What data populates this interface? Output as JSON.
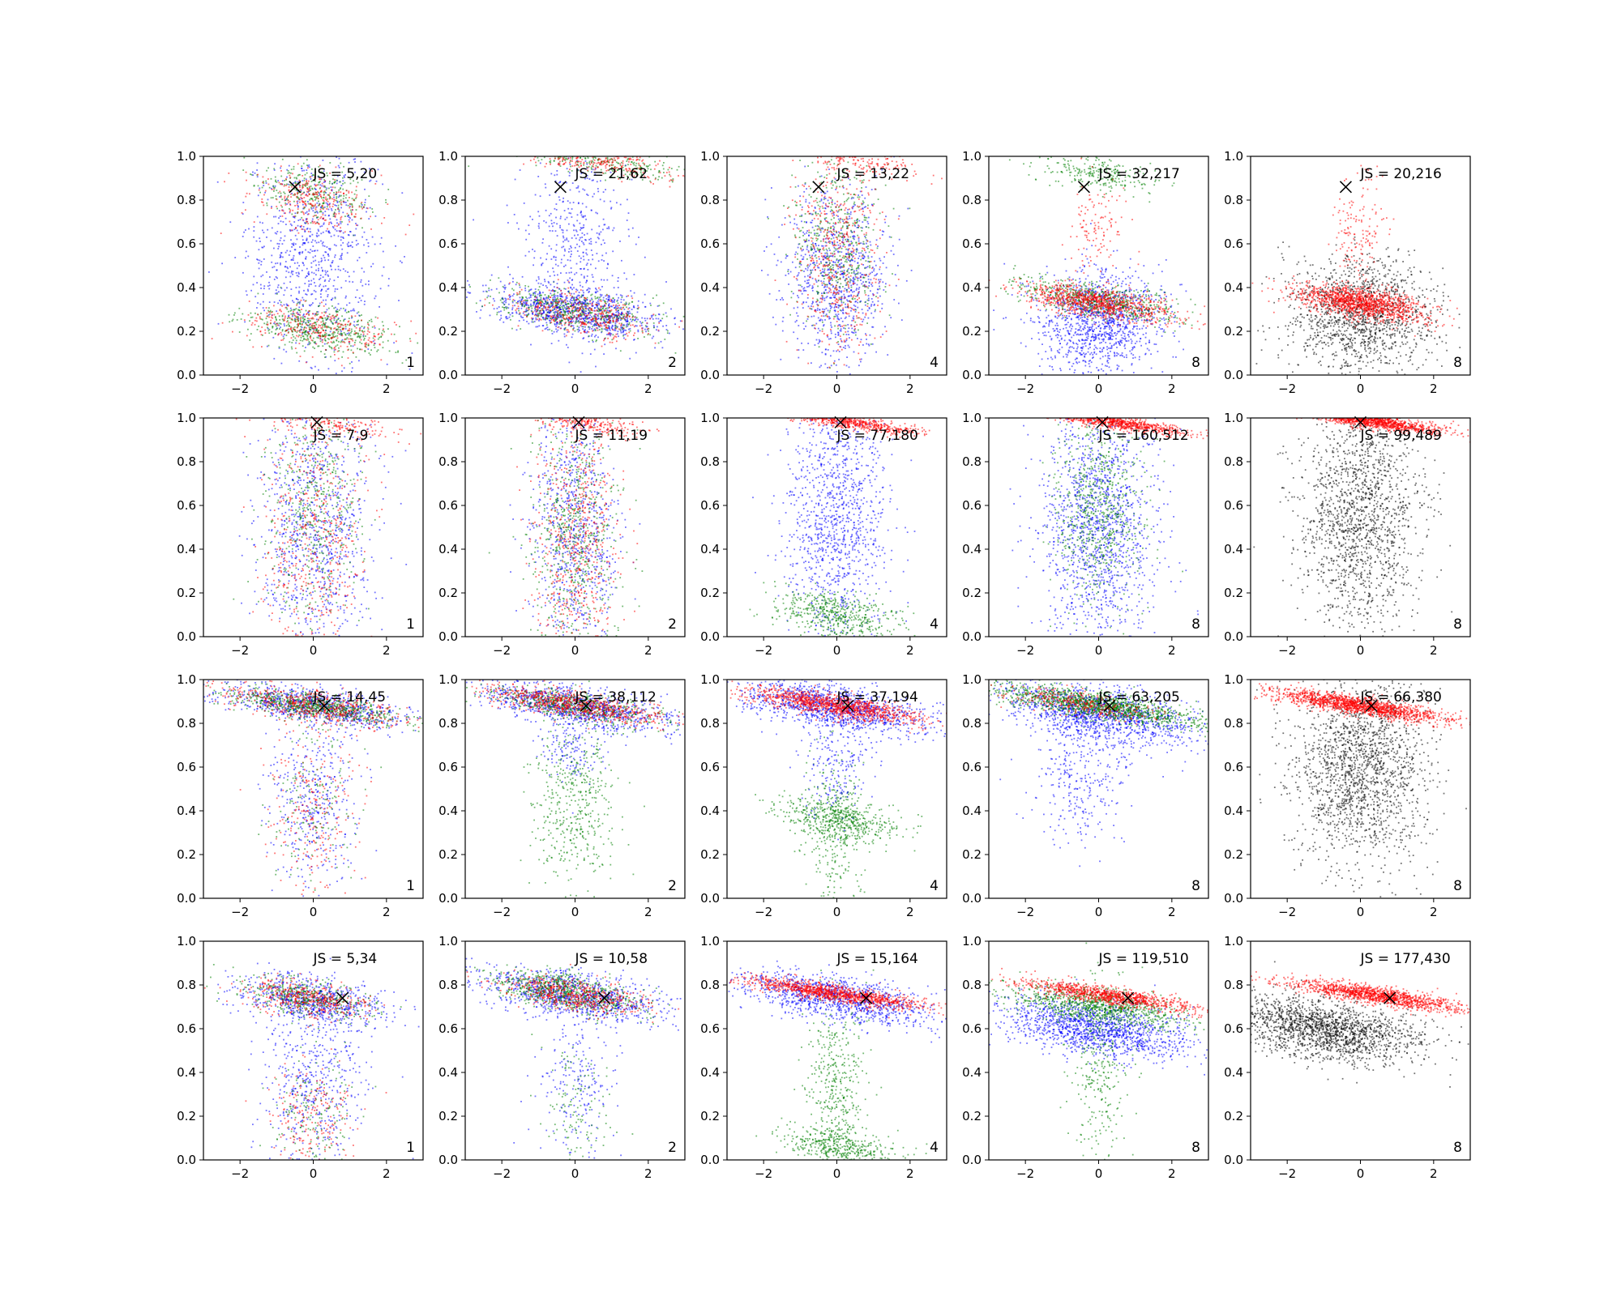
{
  "axes": {
    "xlim": [
      -3,
      3
    ],
    "ylim": [
      0,
      1
    ],
    "xticks": [
      -2,
      0,
      2
    ],
    "xtick_labels": [
      "−2",
      "0",
      "2"
    ],
    "yticks": [
      0,
      0.2,
      0.4,
      0.6,
      0.8,
      1
    ],
    "ytick_labels": [
      "0.0",
      "0.2",
      "0.4",
      "0.6",
      "0.8",
      "1.0"
    ]
  },
  "colors": {
    "blue": "#0000ff",
    "green": "#008000",
    "red": "#ff0000",
    "black": "#000000"
  },
  "chart_data": [
    {
      "type": "scatter",
      "row": 0,
      "col": 0,
      "annotation": "JS = 5,20",
      "tag": "1",
      "marker": [
        -0.5,
        0.86
      ],
      "clusters": [
        {
          "color": "blue",
          "mode": "column",
          "cx": 0,
          "cy": 0.55,
          "sx": 0.9,
          "sy": 0.25,
          "n": 900
        },
        {
          "color": "green",
          "mode": "band",
          "cx": 0.2,
          "cy": 0.21,
          "sx": 1.0,
          "sy": 0.05,
          "n": 500
        },
        {
          "color": "red",
          "mode": "band",
          "cx": 0.2,
          "cy": 0.21,
          "sx": 1.0,
          "sy": 0.05,
          "n": 300
        },
        {
          "color": "green",
          "mode": "band",
          "cx": 0,
          "cy": 0.84,
          "sx": 0.8,
          "sy": 0.06,
          "n": 300
        },
        {
          "color": "red",
          "mode": "band",
          "cx": 0,
          "cy": 0.8,
          "sx": 0.8,
          "sy": 0.07,
          "n": 300
        }
      ]
    },
    {
      "type": "scatter",
      "row": 0,
      "col": 1,
      "annotation": "JS = 21,62",
      "tag": "2",
      "marker": [
        -0.4,
        0.86
      ],
      "clusters": [
        {
          "color": "blue",
          "mode": "band",
          "cx": 0,
          "cy": 0.29,
          "sx": 1.2,
          "sy": 0.05,
          "n": 900
        },
        {
          "color": "green",
          "mode": "band",
          "cx": 0,
          "cy": 0.29,
          "sx": 1.1,
          "sy": 0.05,
          "n": 500
        },
        {
          "color": "red",
          "mode": "band",
          "cx": 0.2,
          "cy": 0.28,
          "sx": 1.0,
          "sy": 0.05,
          "n": 400
        },
        {
          "color": "blue",
          "mode": "column",
          "cx": 0,
          "cy": 0.6,
          "sx": 0.7,
          "sy": 0.25,
          "n": 500
        },
        {
          "color": "green",
          "mode": "band",
          "cx": 0.5,
          "cy": 0.98,
          "sx": 1.2,
          "sy": 0.03,
          "n": 300
        },
        {
          "color": "red",
          "mode": "band",
          "cx": 0.5,
          "cy": 0.98,
          "sx": 1.2,
          "sy": 0.03,
          "n": 300
        }
      ]
    },
    {
      "type": "scatter",
      "row": 0,
      "col": 2,
      "annotation": "JS = 13,22",
      "tag": "4",
      "marker": [
        -0.5,
        0.86
      ],
      "clusters": [
        {
          "color": "blue",
          "mode": "column",
          "cx": 0,
          "cy": 0.45,
          "sx": 0.7,
          "sy": 0.2,
          "n": 900
        },
        {
          "color": "green",
          "mode": "column",
          "cx": 0,
          "cy": 0.6,
          "sx": 0.6,
          "sy": 0.22,
          "n": 500
        },
        {
          "color": "red",
          "mode": "column",
          "cx": 0,
          "cy": 0.55,
          "sx": 0.6,
          "sy": 0.25,
          "n": 500
        },
        {
          "color": "red",
          "mode": "band",
          "cx": 0.5,
          "cy": 0.98,
          "sx": 0.8,
          "sy": 0.03,
          "n": 150
        }
      ]
    },
    {
      "type": "scatter",
      "row": 0,
      "col": 3,
      "annotation": "JS = 32,217",
      "tag": "8",
      "marker": [
        -0.4,
        0.86
      ],
      "clusters": [
        {
          "color": "blue",
          "mode": "column",
          "cx": 0,
          "cy": 0.25,
          "sx": 0.9,
          "sy": 0.12,
          "n": 1200
        },
        {
          "color": "green",
          "mode": "band",
          "cx": 0,
          "cy": 0.34,
          "sx": 1.1,
          "sy": 0.04,
          "n": 600
        },
        {
          "color": "red",
          "mode": "band",
          "cx": 0,
          "cy": 0.33,
          "sx": 1.0,
          "sy": 0.035,
          "n": 900
        },
        {
          "color": "green",
          "mode": "band",
          "cx": 0,
          "cy": 0.92,
          "sx": 0.8,
          "sy": 0.04,
          "n": 250
        },
        {
          "color": "red",
          "mode": "column",
          "cx": 0,
          "cy": 0.65,
          "sx": 0.4,
          "sy": 0.12,
          "n": 120
        }
      ]
    },
    {
      "type": "scatter",
      "row": 0,
      "col": 4,
      "annotation": "JS = 20,216",
      "tag": "8",
      "marker": [
        -0.4,
        0.86
      ],
      "clusters": [
        {
          "color": "black",
          "mode": "column",
          "cx": 0,
          "cy": 0.28,
          "sx": 1.0,
          "sy": 0.13,
          "n": 1400
        },
        {
          "color": "red",
          "mode": "band",
          "cx": 0,
          "cy": 0.33,
          "sx": 0.9,
          "sy": 0.035,
          "n": 1300
        },
        {
          "color": "red",
          "mode": "column",
          "cx": 0,
          "cy": 0.65,
          "sx": 0.4,
          "sy": 0.12,
          "n": 150
        }
      ]
    },
    {
      "type": "scatter",
      "row": 1,
      "col": 0,
      "annotation": "JS = 7,9",
      "tag": "1",
      "marker": [
        0.1,
        0.98
      ],
      "clusters": [
        {
          "color": "blue",
          "mode": "column",
          "cx": 0,
          "cy": 0.5,
          "sx": 0.8,
          "sy": 0.3,
          "n": 900
        },
        {
          "color": "green",
          "mode": "column",
          "cx": 0,
          "cy": 0.55,
          "sx": 0.7,
          "sy": 0.28,
          "n": 500
        },
        {
          "color": "red",
          "mode": "column",
          "cx": 0,
          "cy": 0.5,
          "sx": 0.7,
          "sy": 0.3,
          "n": 500
        },
        {
          "color": "red",
          "mode": "band",
          "cx": 0.3,
          "cy": 0.98,
          "sx": 1.0,
          "sy": 0.03,
          "n": 200
        }
      ]
    },
    {
      "type": "scatter",
      "row": 1,
      "col": 1,
      "annotation": "JS = 11,19",
      "tag": "2",
      "marker": [
        0.1,
        0.98
      ],
      "clusters": [
        {
          "color": "blue",
          "mode": "column",
          "cx": 0,
          "cy": 0.5,
          "sx": 0.6,
          "sy": 0.3,
          "n": 800
        },
        {
          "color": "green",
          "mode": "column",
          "cx": 0,
          "cy": 0.45,
          "sx": 0.6,
          "sy": 0.28,
          "n": 600
        },
        {
          "color": "red",
          "mode": "column",
          "cx": 0,
          "cy": 0.45,
          "sx": 0.6,
          "sy": 0.3,
          "n": 600
        },
        {
          "color": "red",
          "mode": "band",
          "cx": 0.3,
          "cy": 0.98,
          "sx": 0.8,
          "sy": 0.02,
          "n": 250
        }
      ]
    },
    {
      "type": "scatter",
      "row": 1,
      "col": 2,
      "annotation": "JS = 77,180",
      "tag": "4",
      "marker": [
        0.1,
        0.98
      ],
      "clusters": [
        {
          "color": "blue",
          "mode": "column",
          "cx": 0,
          "cy": 0.55,
          "sx": 0.7,
          "sy": 0.28,
          "n": 1100
        },
        {
          "color": "green",
          "mode": "band",
          "cx": 0,
          "cy": 0.1,
          "sx": 0.8,
          "sy": 0.05,
          "n": 500
        },
        {
          "color": "red",
          "mode": "band",
          "cx": 0.2,
          "cy": 0.985,
          "sx": 1.0,
          "sy": 0.015,
          "n": 700
        }
      ]
    },
    {
      "type": "scatter",
      "row": 1,
      "col": 3,
      "annotation": "JS = 160,512",
      "tag": "8",
      "marker": [
        0.1,
        0.98
      ],
      "clusters": [
        {
          "color": "blue",
          "mode": "column",
          "cx": 0,
          "cy": 0.5,
          "sx": 0.8,
          "sy": 0.28,
          "n": 1400
        },
        {
          "color": "green",
          "mode": "column",
          "cx": 0,
          "cy": 0.6,
          "sx": 0.6,
          "sy": 0.22,
          "n": 700
        },
        {
          "color": "red",
          "mode": "band",
          "cx": 0.3,
          "cy": 0.985,
          "sx": 1.0,
          "sy": 0.015,
          "n": 900
        }
      ]
    },
    {
      "type": "scatter",
      "row": 1,
      "col": 4,
      "annotation": "JS = 99,489",
      "tag": "8",
      "marker": [
        0.0,
        0.98
      ],
      "clusters": [
        {
          "color": "black",
          "mode": "column",
          "cx": 0,
          "cy": 0.55,
          "sx": 0.8,
          "sy": 0.26,
          "n": 1600
        },
        {
          "color": "red",
          "mode": "band",
          "cx": 0.3,
          "cy": 0.985,
          "sx": 1.0,
          "sy": 0.015,
          "n": 1200
        }
      ]
    },
    {
      "type": "scatter",
      "row": 2,
      "col": 0,
      "annotation": "JS = 14,45",
      "tag": "1",
      "marker": [
        0.3,
        0.88
      ],
      "clusters": [
        {
          "color": "blue",
          "mode": "band",
          "cx": 0,
          "cy": 0.88,
          "sx": 1.2,
          "sy": 0.04,
          "n": 800
        },
        {
          "color": "green",
          "mode": "band",
          "cx": 0,
          "cy": 0.88,
          "sx": 1.2,
          "sy": 0.03,
          "n": 700
        },
        {
          "color": "red",
          "mode": "band",
          "cx": 0,
          "cy": 0.88,
          "sx": 1.2,
          "sy": 0.035,
          "n": 500
        },
        {
          "color": "blue",
          "mode": "column",
          "cx": 0,
          "cy": 0.45,
          "sx": 0.6,
          "sy": 0.2,
          "n": 400
        },
        {
          "color": "red",
          "mode": "column",
          "cx": 0,
          "cy": 0.4,
          "sx": 0.6,
          "sy": 0.2,
          "n": 250
        },
        {
          "color": "green",
          "mode": "column",
          "cx": 0,
          "cy": 0.4,
          "sx": 0.6,
          "sy": 0.2,
          "n": 150
        }
      ]
    },
    {
      "type": "scatter",
      "row": 2,
      "col": 1,
      "annotation": "JS = 38,112",
      "tag": "2",
      "marker": [
        0.3,
        0.88
      ],
      "clusters": [
        {
          "color": "blue",
          "mode": "band",
          "cx": 0,
          "cy": 0.88,
          "sx": 1.3,
          "sy": 0.045,
          "n": 1000
        },
        {
          "color": "green",
          "mode": "band",
          "cx": 0,
          "cy": 0.88,
          "sx": 1.2,
          "sy": 0.03,
          "n": 500
        },
        {
          "color": "red",
          "mode": "band",
          "cx": 0,
          "cy": 0.88,
          "sx": 1.2,
          "sy": 0.03,
          "n": 700
        },
        {
          "color": "green",
          "mode": "column",
          "cx": 0,
          "cy": 0.45,
          "sx": 0.6,
          "sy": 0.22,
          "n": 500
        },
        {
          "color": "blue",
          "mode": "column",
          "cx": 0,
          "cy": 0.7,
          "sx": 0.5,
          "sy": 0.08,
          "n": 150
        }
      ]
    },
    {
      "type": "scatter",
      "row": 2,
      "col": 2,
      "annotation": "JS = 37,194",
      "tag": "4",
      "marker": [
        0.3,
        0.88
      ],
      "clusters": [
        {
          "color": "blue",
          "mode": "band",
          "cx": 0,
          "cy": 0.87,
          "sx": 1.3,
          "sy": 0.05,
          "n": 1200
        },
        {
          "color": "red",
          "mode": "band",
          "cx": 0,
          "cy": 0.88,
          "sx": 1.2,
          "sy": 0.025,
          "n": 1100
        },
        {
          "color": "green",
          "mode": "band",
          "cx": 0,
          "cy": 0.36,
          "sx": 0.9,
          "sy": 0.05,
          "n": 500
        },
        {
          "color": "green",
          "mode": "column",
          "cx": 0,
          "cy": 0.3,
          "sx": 0.4,
          "sy": 0.2,
          "n": 300
        },
        {
          "color": "blue",
          "mode": "column",
          "cx": 0,
          "cy": 0.6,
          "sx": 0.5,
          "sy": 0.12,
          "n": 200
        }
      ]
    },
    {
      "type": "scatter",
      "row": 2,
      "col": 3,
      "annotation": "JS = 63,205",
      "tag": "8",
      "marker": [
        0.3,
        0.88
      ],
      "clusters": [
        {
          "color": "blue",
          "mode": "band",
          "cx": 0,
          "cy": 0.84,
          "sx": 1.3,
          "sy": 0.06,
          "n": 1300
        },
        {
          "color": "green",
          "mode": "band",
          "cx": 0,
          "cy": 0.88,
          "sx": 1.4,
          "sy": 0.03,
          "n": 1300
        },
        {
          "color": "red",
          "mode": "band",
          "cx": -0.5,
          "cy": 0.89,
          "sx": 1.0,
          "sy": 0.025,
          "n": 300
        },
        {
          "color": "blue",
          "mode": "column",
          "cx": -0.5,
          "cy": 0.55,
          "sx": 0.7,
          "sy": 0.15,
          "n": 300
        }
      ]
    },
    {
      "type": "scatter",
      "row": 2,
      "col": 4,
      "annotation": "JS = 66,380",
      "tag": "8",
      "marker": [
        0.3,
        0.88
      ],
      "clusters": [
        {
          "color": "black",
          "mode": "column",
          "cx": 0,
          "cy": 0.6,
          "sx": 0.9,
          "sy": 0.22,
          "n": 1800
        },
        {
          "color": "red",
          "mode": "band",
          "cx": 0,
          "cy": 0.88,
          "sx": 1.2,
          "sy": 0.02,
          "n": 1500
        }
      ]
    },
    {
      "type": "scatter",
      "row": 3,
      "col": 0,
      "annotation": "JS = 5,34",
      "tag": "1",
      "marker": [
        0.8,
        0.74
      ],
      "clusters": [
        {
          "color": "blue",
          "mode": "band",
          "cx": 0,
          "cy": 0.73,
          "sx": 1.0,
          "sy": 0.05,
          "n": 700
        },
        {
          "color": "green",
          "mode": "band",
          "cx": -0.2,
          "cy": 0.74,
          "sx": 0.9,
          "sy": 0.04,
          "n": 400
        },
        {
          "color": "red",
          "mode": "band",
          "cx": -0.2,
          "cy": 0.74,
          "sx": 0.9,
          "sy": 0.04,
          "n": 400
        },
        {
          "color": "blue",
          "mode": "column",
          "cx": 0,
          "cy": 0.35,
          "sx": 0.7,
          "sy": 0.2,
          "n": 500
        },
        {
          "color": "red",
          "mode": "column",
          "cx": 0,
          "cy": 0.2,
          "sx": 0.6,
          "sy": 0.12,
          "n": 200
        },
        {
          "color": "green",
          "mode": "column",
          "cx": 0,
          "cy": 0.2,
          "sx": 0.6,
          "sy": 0.12,
          "n": 150
        }
      ]
    },
    {
      "type": "scatter",
      "row": 3,
      "col": 1,
      "annotation": "JS = 10,58",
      "tag": "2",
      "marker": [
        0.8,
        0.74
      ],
      "clusters": [
        {
          "color": "blue",
          "mode": "band",
          "cx": 0,
          "cy": 0.75,
          "sx": 1.2,
          "sy": 0.05,
          "n": 1000
        },
        {
          "color": "green",
          "mode": "band",
          "cx": -0.3,
          "cy": 0.77,
          "sx": 1.0,
          "sy": 0.04,
          "n": 700
        },
        {
          "color": "red",
          "mode": "band",
          "cx": 0,
          "cy": 0.75,
          "sx": 1.0,
          "sy": 0.035,
          "n": 500
        },
        {
          "color": "blue",
          "mode": "column",
          "cx": 0,
          "cy": 0.35,
          "sx": 0.6,
          "sy": 0.15,
          "n": 200
        },
        {
          "color": "green",
          "mode": "column",
          "cx": 0,
          "cy": 0.25,
          "sx": 0.5,
          "sy": 0.15,
          "n": 120
        }
      ]
    },
    {
      "type": "scatter",
      "row": 3,
      "col": 2,
      "annotation": "JS = 15,164",
      "tag": "4",
      "marker": [
        0.8,
        0.74
      ],
      "clusters": [
        {
          "color": "blue",
          "mode": "band",
          "cx": 0,
          "cy": 0.74,
          "sx": 1.3,
          "sy": 0.05,
          "n": 1100
        },
        {
          "color": "red",
          "mode": "band",
          "cx": 0,
          "cy": 0.76,
          "sx": 1.2,
          "sy": 0.02,
          "n": 1100
        },
        {
          "color": "green",
          "mode": "band",
          "cx": 0,
          "cy": 0.06,
          "sx": 0.8,
          "sy": 0.04,
          "n": 400
        },
        {
          "color": "green",
          "mode": "column",
          "cx": 0,
          "cy": 0.35,
          "sx": 0.4,
          "sy": 0.2,
          "n": 400
        }
      ]
    },
    {
      "type": "scatter",
      "row": 3,
      "col": 3,
      "annotation": "JS = 119,510",
      "tag": "8",
      "marker": [
        0.8,
        0.74
      ],
      "clusters": [
        {
          "color": "blue",
          "mode": "band",
          "cx": 0,
          "cy": 0.6,
          "sx": 1.3,
          "sy": 0.06,
          "n": 1400
        },
        {
          "color": "green",
          "mode": "band",
          "cx": 0,
          "cy": 0.7,
          "sx": 1.2,
          "sy": 0.04,
          "n": 900
        },
        {
          "color": "red",
          "mode": "band",
          "cx": 0.3,
          "cy": 0.75,
          "sx": 1.2,
          "sy": 0.02,
          "n": 1000
        },
        {
          "color": "green",
          "mode": "column",
          "cx": 0,
          "cy": 0.4,
          "sx": 0.4,
          "sy": 0.25,
          "n": 300
        }
      ]
    },
    {
      "type": "scatter",
      "row": 3,
      "col": 4,
      "annotation": "JS = 177,430",
      "tag": "8",
      "marker": [
        0.8,
        0.74
      ],
      "clusters": [
        {
          "color": "black",
          "mode": "band",
          "cx": -1,
          "cy": 0.6,
          "sx": 1.3,
          "sy": 0.07,
          "n": 1800
        },
        {
          "color": "red",
          "mode": "band",
          "cx": 0.5,
          "cy": 0.75,
          "sx": 1.2,
          "sy": 0.02,
          "n": 1300
        }
      ]
    }
  ]
}
